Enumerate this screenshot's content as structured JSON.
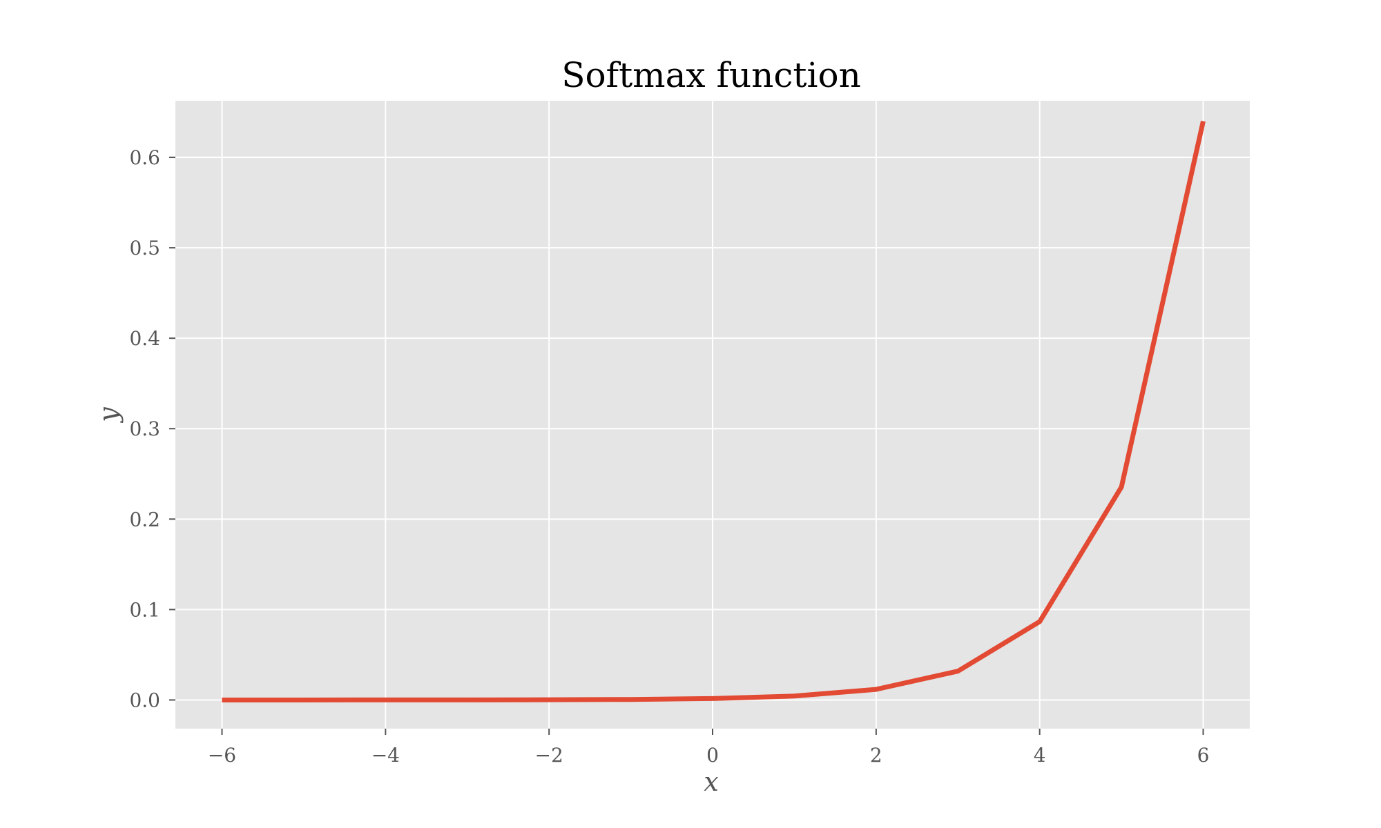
{
  "chart_data": {
    "type": "line",
    "title": "Softmax function",
    "xlabel": "x",
    "ylabel": "y",
    "xlim": [
      -6.57,
      6.57
    ],
    "ylim": [
      -0.0317,
      0.6626
    ],
    "grid": true,
    "background": "#e5e5e5",
    "xticks": [
      -6,
      -4,
      -2,
      0,
      2,
      4,
      6
    ],
    "xtick_labels": [
      "−6",
      "−4",
      "−2",
      "0",
      "2",
      "4",
      "6"
    ],
    "yticks": [
      0.0,
      0.1,
      0.2,
      0.3,
      0.4,
      0.5,
      0.6
    ],
    "ytick_labels": [
      "0.0",
      "0.1",
      "0.2",
      "0.3",
      "0.4",
      "0.5",
      "0.6"
    ],
    "series": [
      {
        "color": "#e24a33",
        "x": [
          -6,
          -5,
          -4,
          -3,
          -2,
          -1,
          0,
          1,
          2,
          3,
          4,
          5,
          6
        ],
        "y": [
          3.9e-06,
          1.07e-05,
          2.91e-05,
          7.9e-05,
          0.0002147,
          0.0005836,
          0.0015865,
          0.0043125,
          0.0117225,
          0.0318649,
          0.0866175,
          0.2354495,
          0.640017
        ]
      }
    ]
  }
}
